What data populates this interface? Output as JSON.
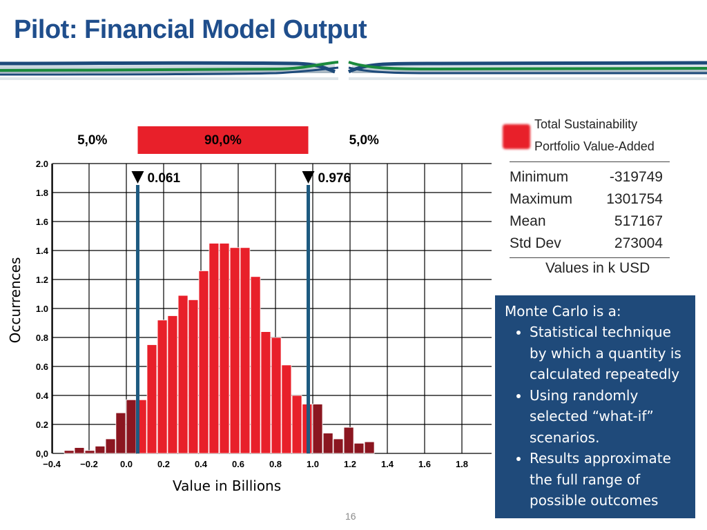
{
  "slide": {
    "title": "Pilot: Financial Model Output",
    "page_number": "16"
  },
  "legend": {
    "line1": "Total Sustainability",
    "line2": "Portfolio Value-Added",
    "color": "#e8202a"
  },
  "stats": {
    "rows": [
      {
        "label": "Minimum",
        "value": "-319749"
      },
      {
        "label": "Maximum",
        "value": "1301754"
      },
      {
        "label": "Mean",
        "value": "517167"
      },
      {
        "label": "Std Dev",
        "value": "273004"
      }
    ],
    "units": "Values in k USD"
  },
  "infobox": {
    "title": "Monte Carlo is a:",
    "bullets": [
      "Statistical technique by which a quantity is calculated repeatedly",
      "Using randomly selected “what-if” scenarios.",
      "Results approximate the full range of possible outcomes"
    ],
    "background": "#1f4a7a"
  },
  "chart_data": {
    "type": "bar",
    "title": "",
    "xlabel": "Value in Billions",
    "ylabel": "Occurrences",
    "xlim": [
      -0.4,
      1.9
    ],
    "ylim": [
      0,
      2.0
    ],
    "x_tick_labels": [
      "−0.4",
      "−0.2",
      "0.0",
      "0.2",
      "0.4",
      "0.6",
      "0.8",
      "1.0",
      "1.2",
      "1.4",
      "1.6",
      "1.8"
    ],
    "x_ticks": [
      -0.4,
      -0.2,
      0.0,
      0.2,
      0.4,
      0.6,
      0.8,
      1.0,
      1.2,
      1.4,
      1.6,
      1.8
    ],
    "y_tick_labels": [
      "0,0",
      "0.2",
      "0.4",
      "0.6",
      "0.8",
      "1.0",
      "1.2",
      "1.4",
      "1.6",
      "1.8",
      "2.0"
    ],
    "y_ticks": [
      0,
      0.2,
      0.4,
      0.6,
      0.8,
      1.0,
      1.2,
      1.4,
      1.6,
      1.8,
      2.0
    ],
    "grid": true,
    "bin_width": 0.0556,
    "bins": [
      {
        "x": -0.333,
        "y": 0.02
      },
      {
        "x": -0.278,
        "y": 0.04
      },
      {
        "x": -0.222,
        "y": 0.02
      },
      {
        "x": -0.167,
        "y": 0.05
      },
      {
        "x": -0.111,
        "y": 0.1
      },
      {
        "x": -0.056,
        "y": 0.28
      },
      {
        "x": 0.0,
        "y": 0.37
      },
      {
        "x": 0.056,
        "y": 0.37
      },
      {
        "x": 0.111,
        "y": 0.75
      },
      {
        "x": 0.167,
        "y": 0.92
      },
      {
        "x": 0.222,
        "y": 0.95
      },
      {
        "x": 0.278,
        "y": 1.09
      },
      {
        "x": 0.333,
        "y": 1.06
      },
      {
        "x": 0.389,
        "y": 1.26
      },
      {
        "x": 0.444,
        "y": 1.45
      },
      {
        "x": 0.5,
        "y": 1.45
      },
      {
        "x": 0.556,
        "y": 1.42
      },
      {
        "x": 0.611,
        "y": 1.42
      },
      {
        "x": 0.667,
        "y": 1.22
      },
      {
        "x": 0.722,
        "y": 0.84
      },
      {
        "x": 0.778,
        "y": 0.8
      },
      {
        "x": 0.833,
        "y": 0.61
      },
      {
        "x": 0.889,
        "y": 0.4
      },
      {
        "x": 0.944,
        "y": 0.34
      },
      {
        "x": 1.0,
        "y": 0.34
      },
      {
        "x": 1.056,
        "y": 0.14
      },
      {
        "x": 1.111,
        "y": 0.1
      },
      {
        "x": 1.167,
        "y": 0.18
      },
      {
        "x": 1.222,
        "y": 0.07
      },
      {
        "x": 1.278,
        "y": 0.08
      }
    ],
    "percentile_markers": [
      {
        "x": 0.061,
        "label": "0.061"
      },
      {
        "x": 0.976,
        "label": "0.976"
      }
    ],
    "range_bands": [
      {
        "label": "5,0%"
      },
      {
        "label": "90,0%"
      },
      {
        "label": "5,0%"
      }
    ],
    "colors": {
      "inner": "#e8202a",
      "outer": "#8b1620",
      "marker_line": "#1d5a80",
      "grid": "#000000"
    }
  }
}
